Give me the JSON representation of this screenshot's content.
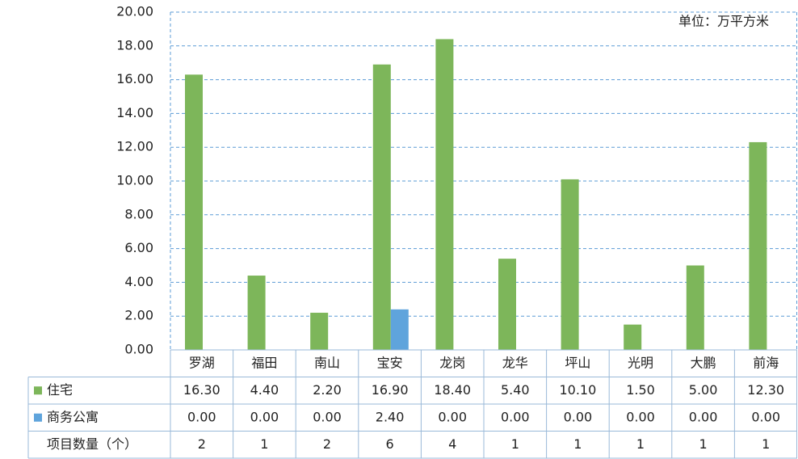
{
  "chart_data": {
    "type": "bar",
    "annotation": "单位：万平方米",
    "categories": [
      "罗湖",
      "福田",
      "南山",
      "宝安",
      "龙岗",
      "龙华",
      "坪山",
      "光明",
      "大鹏",
      "前海"
    ],
    "series": [
      {
        "name": "住宅",
        "color": "#7db65a",
        "values": [
          16.3,
          4.4,
          2.2,
          16.9,
          18.4,
          5.4,
          10.1,
          1.5,
          5.0,
          12.3
        ],
        "value_labels": [
          "16.30",
          "4.40",
          "2.20",
          "16.90",
          "18.40",
          "5.40",
          "10.10",
          "1.50",
          "5.00",
          "12.30"
        ]
      },
      {
        "name": "商务公寓",
        "color": "#5fa4dc",
        "values": [
          0,
          0,
          0,
          2.4,
          0,
          0,
          0,
          0,
          0,
          0
        ],
        "value_labels": [
          "0.00",
          "0.00",
          "0.00",
          "2.40",
          "0.00",
          "0.00",
          "0.00",
          "0.00",
          "0.00",
          "0.00"
        ]
      }
    ],
    "project_counts": {
      "label": "项目数量（个）",
      "values": [
        2,
        1,
        2,
        6,
        4,
        1,
        1,
        1,
        1,
        1
      ]
    },
    "ylim": [
      0,
      20
    ],
    "yticks": [
      {
        "value": 0,
        "label": "0.00"
      },
      {
        "value": 2,
        "label": "2.00"
      },
      {
        "value": 4,
        "label": "4.00"
      },
      {
        "value": 6,
        "label": "6.00"
      },
      {
        "value": 8,
        "label": "8.00"
      },
      {
        "value": 10,
        "label": "10.00"
      },
      {
        "value": 12,
        "label": "12.00"
      },
      {
        "value": 14,
        "label": "14.00"
      },
      {
        "value": 16,
        "label": "16.00"
      },
      {
        "value": 18,
        "label": "18.00"
      },
      {
        "value": 20,
        "label": "20.00"
      }
    ],
    "grid": true
  }
}
